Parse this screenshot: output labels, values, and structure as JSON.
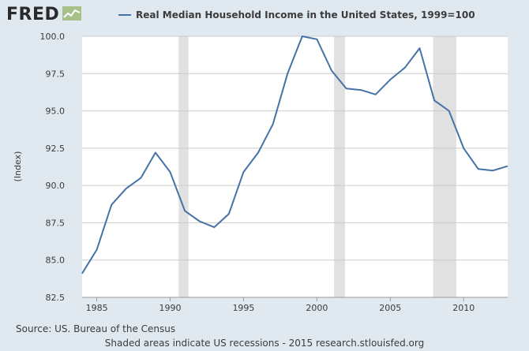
{
  "header": {
    "logo_text": "FRED",
    "logo_icon": "trend-line-icon"
  },
  "legend": {
    "label": "Real Median Household Income in the United States, 1999=100",
    "color": "#4572a7"
  },
  "footer": {
    "source": "Source: US. Bureau of the Census",
    "note": "Shaded areas indicate US recessions - 2015 research.stlouisfed.org"
  },
  "chart_data": {
    "type": "line",
    "ylabel": "(Index)",
    "xlim": [
      1984,
      2013
    ],
    "ylim": [
      82.5,
      100.0
    ],
    "yticks": [
      "82.5",
      "85.0",
      "87.5",
      "90.0",
      "92.5",
      "95.0",
      "97.5",
      "100.0"
    ],
    "xticks": [
      "1985",
      "1990",
      "1995",
      "2000",
      "2005",
      "2010"
    ],
    "grid": true,
    "recessions": [
      [
        1990.58,
        1991.25
      ],
      [
        2001.17,
        2001.92
      ],
      [
        2007.92,
        2009.5
      ]
    ],
    "series": [
      {
        "name": "Real Median Household Income in the United States, 1999=100",
        "color": "#4572a7",
        "x": [
          1984,
          1985,
          1986,
          1987,
          1988,
          1989,
          1990,
          1991,
          1992,
          1993,
          1994,
          1995,
          1996,
          1997,
          1998,
          1999,
          2000,
          2001,
          2002,
          2003,
          2004,
          2005,
          2006,
          2007,
          2008,
          2009,
          2010,
          2011,
          2012,
          2013
        ],
        "y": [
          84.1,
          85.7,
          88.7,
          89.8,
          90.5,
          92.2,
          90.9,
          88.3,
          87.6,
          87.2,
          88.1,
          90.9,
          92.2,
          94.1,
          97.5,
          100.0,
          99.8,
          97.7,
          96.5,
          96.4,
          96.1,
          97.1,
          97.9,
          99.2,
          95.7,
          95.0,
          92.5,
          91.1,
          91.0,
          91.3
        ]
      }
    ]
  }
}
